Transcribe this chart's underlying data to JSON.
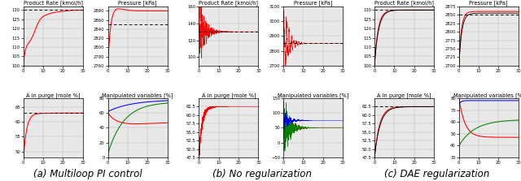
{
  "captions": [
    "(a) Multiloop PI control",
    "(b) No regularization",
    "(c) DAE regularization"
  ],
  "titles": [
    [
      "Product Rate [kmol/h]",
      "Pressure [kPa]",
      "A in purge [mole %]",
      "Manipulated variables [%]"
    ],
    [
      "Product Rate [kmol/h]",
      "Pressure [kPa]",
      "A in purge [mole %]",
      "Manipulated variables [%]"
    ],
    [
      "Product Rate [kmol/h]",
      "Pressure [kPa]",
      "A in purge [mole %]",
      "Manipulated variables [%]"
    ]
  ],
  "col_a": {
    "pr_ylim": [
      100,
      132
    ],
    "pr_yticks": [
      100,
      105,
      110,
      115,
      120,
      125,
      130
    ],
    "pr_setpoint": 130,
    "pres_ylim": [
      2760,
      2890
    ],
    "pres_yticks": [
      2760,
      2780,
      2800,
      2820,
      2840,
      2860,
      2880
    ],
    "pres_setpoint": 2850,
    "ap_ylim": [
      48,
      68
    ],
    "ap_yticks": [
      50,
      55,
      60,
      65
    ],
    "ap_setpoint": 63,
    "mv_ylim": [
      0,
      80
    ],
    "mv_yticks": [
      0,
      20,
      40,
      60,
      80
    ]
  },
  "col_b": {
    "pr_ylim": [
      90,
      160
    ],
    "pr_setpoint": 130,
    "pres_ylim": [
      2700,
      3100
    ],
    "pres_setpoint": 2850,
    "ap_ylim": [
      47.5,
      65
    ],
    "ap_yticks": [
      47.5,
      50.0,
      52.5,
      55.0,
      57.5,
      60.0,
      62.5
    ],
    "mv_ylim": [
      -50,
      150
    ],
    "mv_yticks": [
      -50,
      0,
      50,
      100,
      150
    ]
  },
  "col_c": {
    "pr_ylim": [
      100,
      132
    ],
    "pr_yticks": [
      100,
      105,
      110,
      115,
      120,
      125,
      130
    ],
    "pr_setpoint": 130,
    "pres_ylim": [
      2700,
      2875
    ],
    "pres_yticks": [
      2700,
      2725,
      2750,
      2775,
      2800,
      2825,
      2850,
      2875
    ],
    "pres_setpoint": 2850,
    "ap_ylim": [
      47.5,
      65
    ],
    "ap_yticks": [
      47.5,
      50.0,
      52.5,
      55.0,
      57.5,
      60.0,
      62.5
    ],
    "ap_setpoint": 62.5,
    "mv_ylim": [
      30,
      80
    ],
    "mv_yticks": [
      30,
      40,
      50,
      60,
      70,
      80
    ]
  },
  "xlim": [
    0,
    30
  ],
  "bg_color": "#e8e8e8"
}
